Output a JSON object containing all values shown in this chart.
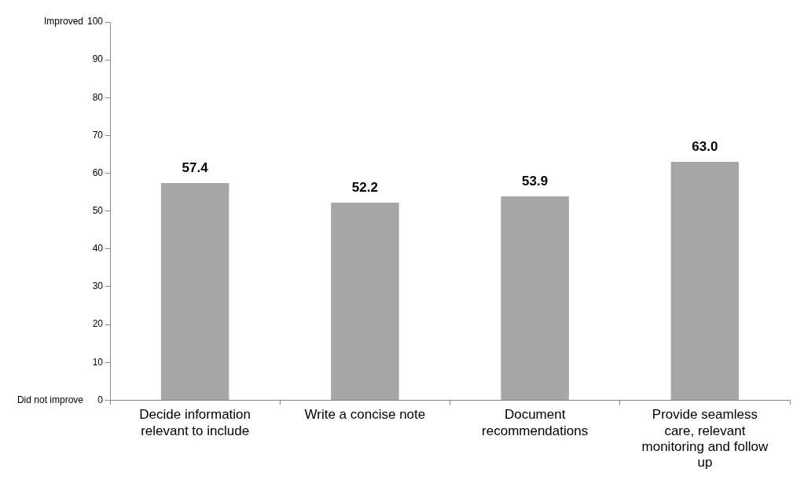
{
  "chart_data": {
    "type": "bar",
    "categories": [
      "Decide information relevant to include",
      "Write a concise note",
      "Document recommendations",
      "Provide seamless care, relevant monitoring and follow up"
    ],
    "values": [
      57.4,
      52.2,
      53.9,
      63.0
    ],
    "value_labels": [
      "57.4",
      "52.2",
      "53.9",
      "63.0"
    ],
    "color": "#a6a6a6",
    "ylim": [
      0,
      100
    ],
    "yticks": [
      0,
      10,
      20,
      30,
      40,
      50,
      60,
      70,
      80,
      90,
      100
    ],
    "grid": false,
    "legend": false,
    "annotations": [
      "Improved",
      "Did not improve"
    ]
  }
}
